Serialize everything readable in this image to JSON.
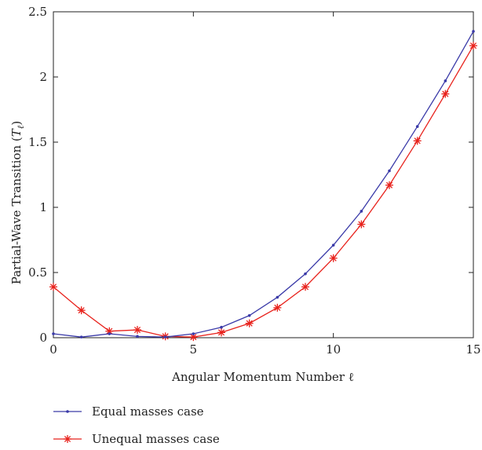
{
  "chart_data": {
    "type": "line",
    "title": "",
    "xlabel": "Angular Momentum Number ℓ",
    "ylabel_prefix": "Partial-Wave Transition (",
    "ylabel_symbol": "T",
    "ylabel_subscript": "ℓ",
    "ylabel_suffix": ")",
    "xlim": [
      0,
      15
    ],
    "ylim": [
      0,
      2.5
    ],
    "xticks": [
      0,
      5,
      10,
      15
    ],
    "yticks": [
      0,
      0.5,
      1,
      1.5,
      2,
      2.5
    ],
    "xtick_labels": [
      "0",
      "5",
      "10",
      "15"
    ],
    "ytick_labels": [
      "0",
      "0.5",
      "1",
      "1.5",
      "2",
      "2.5"
    ],
    "grid": false,
    "legend_position": "below-left",
    "x": [
      0,
      1,
      2,
      3,
      4,
      5,
      6,
      7,
      8,
      9,
      10,
      11,
      12,
      13,
      14,
      15
    ],
    "series": [
      {
        "name": "Equal masses case",
        "color": "#3a3aa8",
        "marker": "dot",
        "values": [
          0.03,
          0.005,
          0.03,
          0.01,
          0.005,
          0.03,
          0.08,
          0.17,
          0.31,
          0.49,
          0.71,
          0.97,
          1.28,
          1.62,
          1.97,
          2.35
        ]
      },
      {
        "name": "Unequal masses case",
        "color": "#e8221c",
        "marker": "asterisk",
        "values": [
          0.39,
          0.21,
          0.05,
          0.06,
          0.01,
          0.005,
          0.04,
          0.11,
          0.23,
          0.39,
          0.61,
          0.87,
          1.17,
          1.51,
          1.87,
          2.24
        ]
      }
    ]
  }
}
